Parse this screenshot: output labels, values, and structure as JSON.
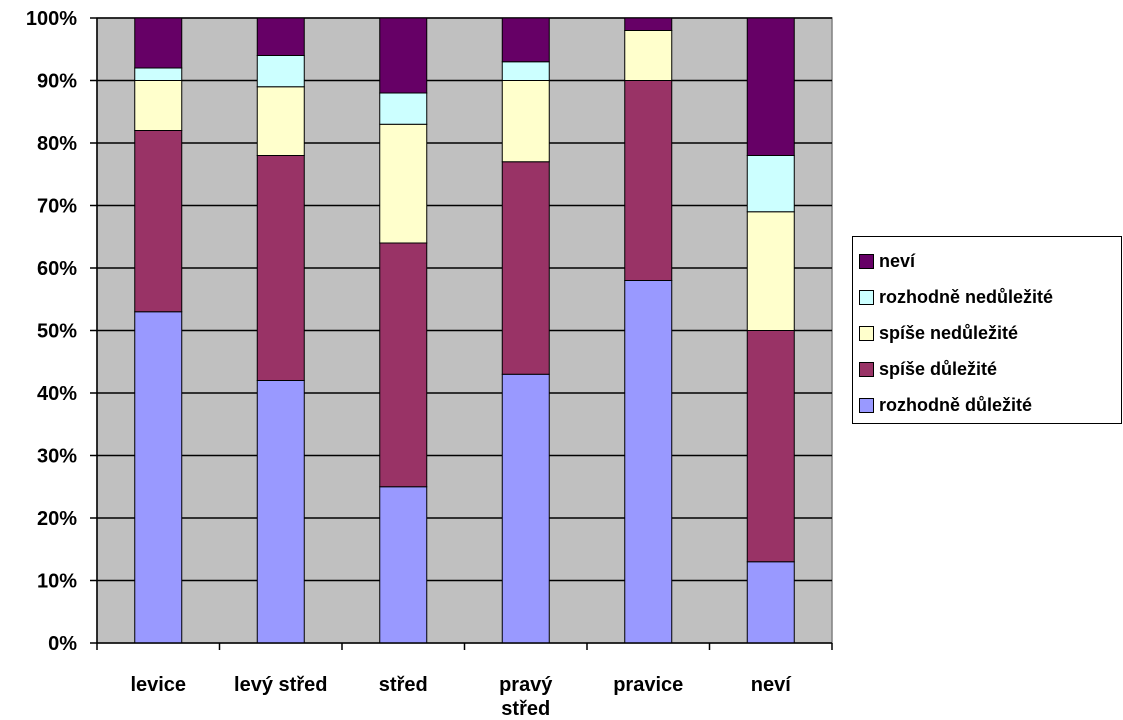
{
  "chart_data": {
    "type": "bar",
    "stacked": true,
    "percent": true,
    "categories": [
      "levice",
      "levý střed",
      "střed",
      "pravý střed",
      "pravice",
      "neví"
    ],
    "category_lines": [
      [
        "levice"
      ],
      [
        "levý střed"
      ],
      [
        "střed"
      ],
      [
        "pravý",
        "střed"
      ],
      [
        "pravice"
      ],
      [
        "neví"
      ]
    ],
    "yticks": [
      "0%",
      "10%",
      "20%",
      "30%",
      "40%",
      "50%",
      "60%",
      "70%",
      "80%",
      "90%",
      "100%"
    ],
    "ylim": [
      0,
      100
    ],
    "grid": true,
    "legend_position": "right",
    "series": [
      {
        "name": "rozhodně důležité",
        "color": "#9999ff",
        "values": [
          53,
          42,
          25,
          43,
          58,
          13
        ]
      },
      {
        "name": "spíše důležité",
        "color": "#993366",
        "values": [
          29,
          36,
          39,
          34,
          32,
          37
        ]
      },
      {
        "name": "spíše nedůležité",
        "color": "#ffffcc",
        "values": [
          8,
          11,
          19,
          13,
          8,
          19
        ]
      },
      {
        "name": "rozhodně nedůležité",
        "color": "#ccffff",
        "values": [
          2,
          5,
          5,
          3,
          0,
          9
        ]
      },
      {
        "name": "neví",
        "color": "#660066",
        "values": [
          8,
          6,
          12,
          7,
          2,
          22
        ]
      }
    ],
    "plot_background": "#c0c0c0"
  }
}
